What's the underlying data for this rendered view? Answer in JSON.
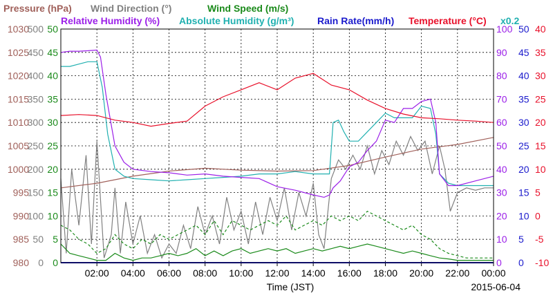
{
  "chart_data": {
    "type": "line",
    "title_rows": [
      [
        {
          "key": "pressure",
          "text": "Pressure (hPa)",
          "color": "#a0605a"
        },
        {
          "key": "wind_direction",
          "text": "Wind Direction (°)",
          "color": "#808080"
        },
        {
          "key": "wind_speed",
          "text": "Wind Speed (m/s)",
          "color": "#1a8a1a"
        }
      ],
      [
        {
          "key": "relative_humidity",
          "text": "Relative Humidity (%)",
          "color": "#9b1fe8"
        },
        {
          "key": "absolute_humidity",
          "text": "Absolute Humidity (g/m³)",
          "color": "#20b0b0"
        },
        {
          "key": "rain_rate",
          "text": "Rain Rate(mm/h)",
          "color": "#1a1acc"
        },
        {
          "key": "temperature",
          "text": "Temperature (°C)",
          "color": "#e8102a"
        },
        {
          "key": "x02",
          "text": "x0.2",
          "color": "#20b0b0"
        }
      ]
    ],
    "xlabel": "Time (JST)",
    "date_label": "2015-06-04",
    "x_ticks": [
      "02:00",
      "04:00",
      "06:00",
      "08:00",
      "10:00",
      "12:00",
      "14:00",
      "16:00",
      "18:00",
      "20:00",
      "22:00",
      "00:00"
    ],
    "xlim": [
      0,
      24
    ],
    "grid": true,
    "axes": {
      "pressure": {
        "color": "#a0605a",
        "ticks": [
          "980",
          "985",
          "990",
          "995",
          "1000",
          "1005",
          "1010",
          "1015",
          "1020",
          "1025",
          "1030"
        ]
      },
      "wind_direction": {
        "color": "#808080",
        "ticks": [
          "0",
          "50",
          "100",
          "150",
          "200",
          "250",
          "300",
          "350",
          "400",
          "450",
          "500"
        ]
      },
      "wind_speed": {
        "color": "#1a8a1a",
        "ticks": [
          "0",
          "5",
          "10",
          "15",
          "20",
          "25",
          "30",
          "35",
          "40",
          "45",
          "50"
        ]
      },
      "relative_humidity": {
        "color": "#9b1fe8",
        "ticks": [
          "0",
          "10",
          "20",
          "30",
          "40",
          "50",
          "60",
          "70",
          "80",
          "90",
          "100"
        ]
      },
      "rain_rate": {
        "color": "#1a1acc",
        "ticks": [
          "0",
          "5",
          "10",
          "15",
          "20",
          "25",
          "30",
          "35",
          "40",
          "45",
          "50"
        ]
      },
      "temperature": {
        "color": "#e8102a",
        "ticks": [
          "-10",
          "-5",
          "0",
          "5",
          "10",
          "15",
          "20",
          "25",
          "30",
          "35",
          "40"
        ]
      }
    },
    "series": [
      {
        "name": "Temperature",
        "color": "#e8102a",
        "axis": "temperature",
        "dash": "",
        "x": [
          0,
          1,
          2,
          3,
          4,
          5,
          6,
          7,
          8,
          9,
          10,
          11,
          12,
          13,
          14,
          15,
          16,
          17,
          18,
          19,
          20,
          21,
          22,
          23,
          24
        ],
        "values": [
          21.5,
          21.7,
          21.5,
          20.5,
          20.0,
          19.2,
          19.8,
          20.3,
          23.5,
          25.5,
          27.0,
          28.5,
          27.0,
          29.5,
          30.5,
          28.0,
          27.0,
          24.8,
          23.0,
          21.8,
          21.0,
          20.8,
          20.5,
          20.3,
          20.0
        ]
      },
      {
        "name": "Relative Humidity",
        "color": "#9b1fe8",
        "axis": "relative_humidity",
        "dash": "",
        "x": [
          0,
          0.5,
          1,
          1.5,
          2,
          2.2,
          2.5,
          3,
          3.5,
          4,
          5,
          6,
          7,
          8,
          9,
          10,
          11,
          12,
          13,
          14,
          14.6,
          14.9,
          15.1,
          15.5,
          16,
          16.5,
          17,
          17.5,
          18,
          18.5,
          19,
          19.5,
          20,
          20.5,
          20.8,
          21,
          21.5,
          22,
          23,
          24
        ],
        "values": [
          90,
          90.5,
          90.5,
          90.7,
          91,
          88,
          72,
          50,
          43,
          40,
          39,
          38.5,
          37.5,
          38,
          37,
          36.5,
          36,
          32.5,
          31,
          29,
          28,
          29,
          32,
          35,
          41,
          43,
          48,
          52,
          61,
          60,
          66,
          66,
          69,
          70,
          60,
          38,
          33,
          33,
          35,
          37
        ]
      },
      {
        "name": "Absolute Humidity (x0.2)",
        "color": "#20b0b0",
        "axis": "relative_humidity",
        "dash": "",
        "x": [
          0,
          0.5,
          1,
          1.5,
          2,
          2.3,
          2.6,
          3,
          3.5,
          4,
          5,
          6,
          7,
          8,
          9,
          10,
          11,
          12,
          13,
          14,
          14.6,
          14.9,
          15.1,
          15.4,
          15.7,
          16,
          16.5,
          17,
          17.5,
          18,
          18.5,
          19,
          19.5,
          20,
          20.5,
          20.8,
          21,
          21.5,
          22,
          23,
          24
        ],
        "values": [
          84,
          84,
          85,
          86,
          86,
          75,
          55,
          40,
          37,
          36,
          35.5,
          35,
          35.5,
          36,
          36.5,
          37,
          38,
          38,
          39,
          38,
          38,
          38,
          60,
          61,
          56,
          52,
          52,
          56,
          60,
          64,
          62,
          62,
          62,
          67,
          66,
          55,
          38,
          34,
          33,
          33,
          33
        ]
      },
      {
        "name": "Pressure",
        "color": "#a0605a",
        "axis": "pressure",
        "dash": "",
        "x": [
          0,
          2,
          4,
          6,
          8,
          10,
          12,
          14,
          16,
          18,
          20,
          22,
          24
        ],
        "values": [
          996.0,
          997.0,
          998.5,
          999.6,
          1000.2,
          999.8,
          999.6,
          999.7,
          1000.8,
          1002.6,
          1004.3,
          1005.3,
          1006.8
        ]
      },
      {
        "name": "Wind Direction",
        "color": "#808080",
        "axis": "wind_direction",
        "dash": "",
        "x": [
          0,
          0.3,
          0.6,
          1.0,
          1.4,
          1.7,
          2.0,
          2.4,
          2.8,
          3.0,
          3.3,
          3.6,
          4.0,
          4.4,
          4.8,
          5.2,
          5.6,
          6.0,
          6.4,
          6.8,
          7.2,
          7.6,
          8.0,
          8.4,
          8.8,
          9.2,
          9.6,
          10.0,
          10.4,
          10.8,
          11.2,
          11.6,
          12.0,
          12.4,
          12.8,
          13.2,
          13.6,
          14.0,
          14.3,
          14.6,
          15.0,
          15.4,
          15.8,
          16.2,
          16.6,
          17.0,
          17.4,
          17.8,
          18.2,
          18.6,
          19.0,
          19.4,
          19.8,
          20.2,
          20.6,
          21.0,
          21.3,
          21.6,
          22.0,
          22.5,
          23.0,
          23.5,
          24.0
        ],
        "values": [
          180,
          20,
          200,
          80,
          230,
          40,
          260,
          10,
          60,
          160,
          20,
          130,
          40,
          100,
          20,
          60,
          10,
          40,
          20,
          80,
          30,
          120,
          60,
          100,
          40,
          140,
          70,
          110,
          40,
          130,
          60,
          140,
          90,
          160,
          70,
          150,
          100,
          170,
          60,
          30,
          180,
          220,
          200,
          230,
          200,
          250,
          190,
          240,
          210,
          260,
          230,
          270,
          240,
          260,
          190,
          250,
          200,
          110,
          150,
          160,
          155,
          160,
          160
        ]
      },
      {
        "name": "Wind Speed",
        "color": "#1a8a1a",
        "axis": "wind_speed",
        "dash": "",
        "x": [
          0,
          0.5,
          1,
          1.5,
          2,
          2.5,
          3,
          3.5,
          4,
          4.5,
          5,
          5.5,
          6,
          6.5,
          7,
          7.5,
          8,
          8.5,
          9,
          9.5,
          10,
          10.5,
          11,
          11.5,
          12,
          12.5,
          13,
          13.5,
          14,
          14.5,
          15,
          15.5,
          16,
          16.5,
          17,
          17.5,
          18,
          18.5,
          19,
          19.5,
          20,
          20.5,
          21,
          21.5,
          22,
          22.5,
          23,
          23.5,
          24
        ],
        "values": [
          4,
          2,
          1.5,
          1,
          0.5,
          0.5,
          2,
          1,
          0.5,
          1,
          1,
          1.5,
          2,
          1.5,
          2,
          3,
          1.5,
          2.5,
          1.5,
          2.5,
          3,
          2,
          2.5,
          3,
          2.5,
          3,
          2,
          2.5,
          3,
          2.5,
          3,
          3.5,
          3,
          3.5,
          4,
          3.5,
          3,
          2.5,
          2,
          2.5,
          2,
          1.5,
          1,
          0.8,
          0.5,
          0.5,
          0.5,
          0.5,
          0.5
        ]
      },
      {
        "name": "Wind Speed (gust)",
        "color": "#1a8a1a",
        "axis": "wind_speed",
        "dash": "4,3",
        "x": [
          0,
          0.5,
          1,
          1.5,
          2,
          2.5,
          3,
          3.5,
          4,
          4.5,
          5,
          5.5,
          6,
          6.5,
          7,
          7.5,
          8,
          8.5,
          9,
          9.5,
          10,
          10.5,
          11,
          11.5,
          12,
          12.5,
          13,
          13.5,
          14,
          14.5,
          15,
          15.5,
          16,
          16.5,
          17,
          17.5,
          18,
          18.5,
          19,
          19.5,
          20,
          20.5,
          21,
          21.5,
          22,
          22.5,
          23,
          23.5,
          24
        ],
        "values": [
          8,
          7,
          5,
          4,
          2,
          3,
          6,
          4,
          3,
          5,
          4,
          6,
          5,
          6,
          7,
          8,
          6,
          9,
          6,
          9,
          8,
          7,
          8,
          9,
          8,
          10,
          7,
          8,
          9,
          8,
          10,
          9,
          10,
          9,
          11,
          10,
          9,
          8,
          7,
          8,
          6,
          5,
          3,
          2,
          1.5,
          1,
          1,
          1,
          1
        ]
      },
      {
        "name": "Rain Rate",
        "color": "#1a1acc",
        "axis": "rain_rate",
        "dash": "",
        "x": [
          0,
          24
        ],
        "values": [
          0,
          0
        ]
      }
    ]
  }
}
